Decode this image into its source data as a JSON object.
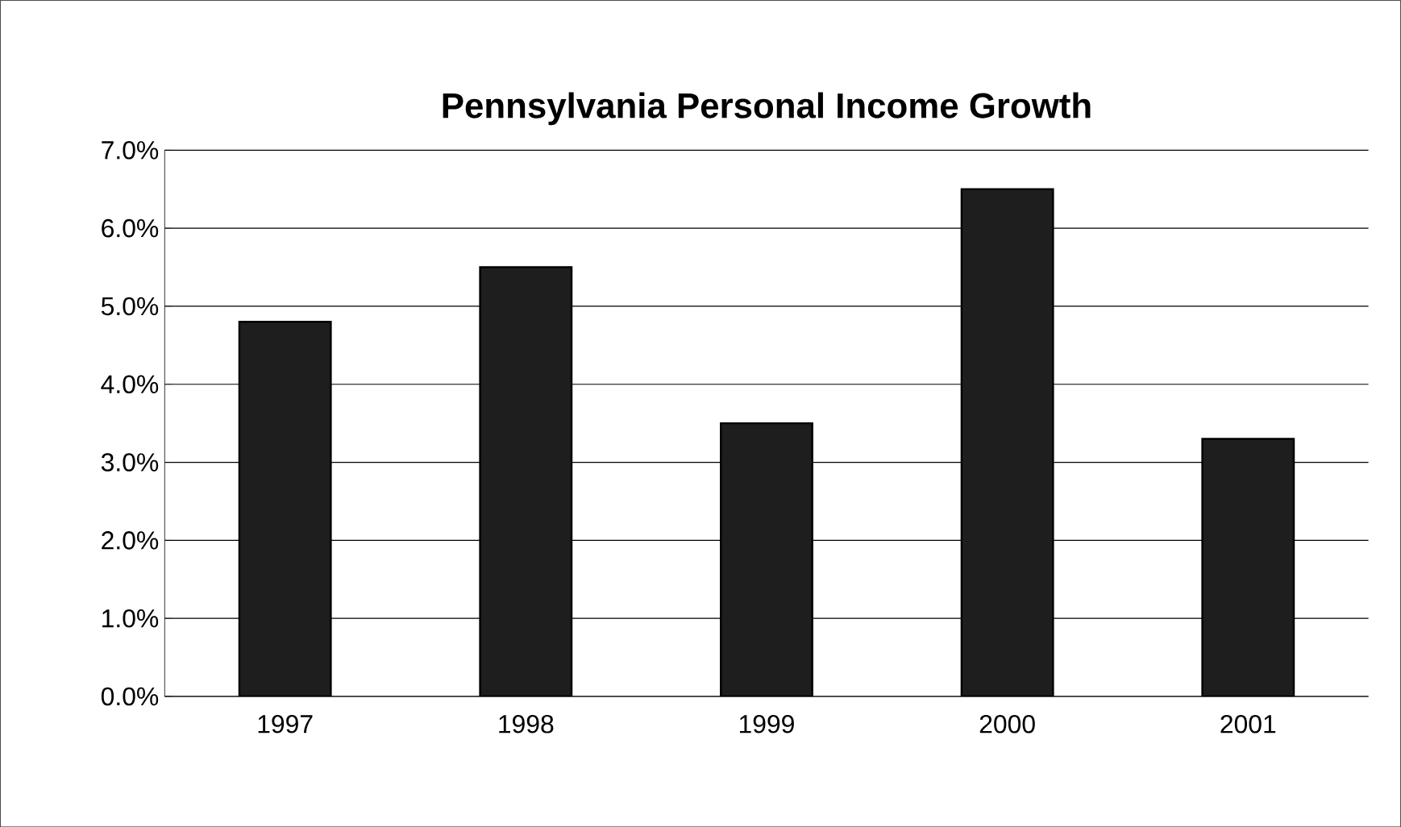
{
  "chart_data": {
    "type": "bar",
    "title": "Pennsylvania Personal Income Growth",
    "categories": [
      "1997",
      "1998",
      "1999",
      "2000",
      "2001"
    ],
    "values": [
      4.8,
      5.5,
      3.5,
      6.5,
      3.3
    ],
    "color": "#1e1e1e",
    "ylim": [
      0,
      7
    ],
    "yticks": [
      {
        "value": 0,
        "label": "0.0%"
      },
      {
        "value": 1,
        "label": "1.0%"
      },
      {
        "value": 2,
        "label": "2.0%"
      },
      {
        "value": 3,
        "label": "3.0%"
      },
      {
        "value": 4,
        "label": "4.0%"
      },
      {
        "value": 5,
        "label": "5.0%"
      },
      {
        "value": 6,
        "label": "6.0%"
      },
      {
        "value": 7,
        "label": "7.0%"
      }
    ],
    "grid": "y"
  }
}
